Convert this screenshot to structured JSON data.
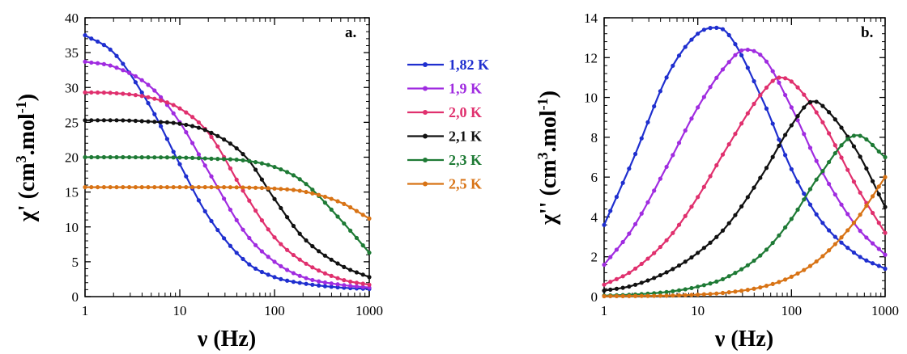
{
  "chart_data": [
    {
      "type": "scatter",
      "panel_label": "a.",
      "xlabel": "ν (Hz)",
      "ylabel_main": "χ' (cm",
      "ylabel_sup1": "3",
      "ylabel_mid": ".mol",
      "ylabel_sup2": "-1",
      "ylabel_end": ")",
      "xscale": "log",
      "xlim": [
        1,
        1000
      ],
      "ylim": [
        0,
        40
      ],
      "xticks": [
        "1",
        "10",
        "100",
        "1000"
      ],
      "yticks": [
        "0",
        "5",
        "10",
        "15",
        "20",
        "25",
        "30",
        "35",
        "40"
      ],
      "series": [
        {
          "name": "1,82 K",
          "color": "#1f2fcf",
          "x": [
            1,
            2,
            5,
            10,
            20,
            50,
            100,
            200,
            500,
            1000
          ],
          "y": [
            37.5,
            35.0,
            27.0,
            19.0,
            11.5,
            5.0,
            2.8,
            1.9,
            1.3,
            1.1
          ]
        },
        {
          "name": "1,9 K",
          "color": "#a02ce0",
          "x": [
            1,
            2,
            5,
            10,
            20,
            50,
            100,
            200,
            500,
            1000
          ],
          "y": [
            33.7,
            33.0,
            30.0,
            25.0,
            18.0,
            9.0,
            5.0,
            2.8,
            1.7,
            1.3
          ]
        },
        {
          "name": "2,0 K",
          "color": "#e0306e",
          "x": [
            1,
            2,
            5,
            10,
            20,
            50,
            100,
            200,
            500,
            1000
          ],
          "y": [
            29.3,
            29.2,
            28.5,
            27.0,
            23.5,
            14.5,
            8.5,
            5.0,
            2.5,
            1.7
          ]
        },
        {
          "name": "2,1 K",
          "color": "#111111",
          "x": [
            1,
            2,
            5,
            10,
            20,
            50,
            100,
            200,
            500,
            1000
          ],
          "y": [
            25.3,
            25.3,
            25.1,
            24.8,
            23.7,
            20.0,
            14.0,
            8.5,
            4.5,
            2.8
          ]
        },
        {
          "name": "2,3 K",
          "color": "#1e7a35",
          "x": [
            1,
            2,
            5,
            10,
            20,
            50,
            100,
            200,
            500,
            1000
          ],
          "y": [
            20.0,
            20.0,
            19.98,
            19.95,
            19.8,
            19.5,
            18.6,
            16.5,
            11.0,
            6.3
          ]
        },
        {
          "name": "2,5 K",
          "color": "#d87315",
          "x": [
            1,
            2,
            5,
            10,
            20,
            50,
            100,
            200,
            500,
            1000
          ],
          "y": [
            15.7,
            15.7,
            15.7,
            15.7,
            15.7,
            15.65,
            15.5,
            15.1,
            13.5,
            11.2
          ]
        }
      ]
    },
    {
      "type": "scatter",
      "panel_label": "b.",
      "xlabel": "ν (Hz)",
      "ylabel_main": "χ'' (cm",
      "ylabel_sup1": "3",
      "ylabel_mid": ".mol",
      "ylabel_sup2": "-1",
      "ylabel_end": ")",
      "xscale": "log",
      "xlim": [
        1,
        1000
      ],
      "ylim": [
        0,
        14
      ],
      "xticks": [
        "1",
        "10",
        "100",
        "1000"
      ],
      "yticks": [
        "0",
        "2",
        "4",
        "6",
        "8",
        "10",
        "12",
        "14"
      ],
      "series": [
        {
          "name": "1,82 K",
          "color": "#1f2fcf",
          "x": [
            1,
            2,
            5,
            10,
            15,
            20,
            50,
            100,
            200,
            500,
            1000
          ],
          "y": [
            3.6,
            6.8,
            11.3,
            13.2,
            13.5,
            13.3,
            9.8,
            6.4,
            3.9,
            2.1,
            1.4
          ]
        },
        {
          "name": "1,9 K",
          "color": "#a02ce0",
          "x": [
            1,
            2,
            5,
            10,
            20,
            32,
            50,
            100,
            200,
            500,
            1000
          ],
          "y": [
            1.6,
            3.4,
            6.8,
            9.5,
            11.6,
            12.4,
            12.0,
            9.5,
            6.5,
            3.5,
            2.1
          ]
        },
        {
          "name": "2,0 K",
          "color": "#e0306e",
          "x": [
            1,
            2,
            5,
            10,
            20,
            50,
            75,
            100,
            200,
            500,
            1000
          ],
          "y": [
            0.6,
            1.3,
            3.0,
            5.0,
            7.4,
            10.3,
            11.0,
            10.8,
            9.0,
            5.5,
            3.2
          ]
        },
        {
          "name": "2,1 K",
          "color": "#111111",
          "x": [
            1,
            2,
            5,
            10,
            20,
            50,
            100,
            170,
            200,
            500,
            1000
          ],
          "y": [
            0.3,
            0.55,
            1.3,
            2.2,
            3.5,
            6.2,
            8.6,
            9.8,
            9.7,
            7.3,
            4.5
          ]
        },
        {
          "name": "2,3 K",
          "color": "#1e7a35",
          "x": [
            1,
            2,
            5,
            10,
            20,
            50,
            100,
            200,
            500,
            1000
          ],
          "y": [
            0.05,
            0.1,
            0.25,
            0.5,
            0.95,
            2.2,
            3.9,
            6.1,
            8.1,
            7.0
          ]
        },
        {
          "name": "2,5 K",
          "color": "#d87315",
          "x": [
            1,
            2,
            5,
            10,
            20,
            50,
            100,
            200,
            500,
            1000
          ],
          "y": [
            0.02,
            0.03,
            0.05,
            0.1,
            0.2,
            0.5,
            1.0,
            1.9,
            3.9,
            6.0
          ]
        }
      ]
    }
  ]
}
